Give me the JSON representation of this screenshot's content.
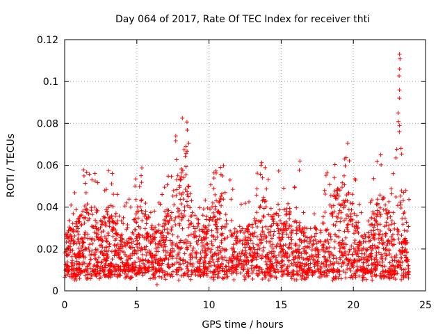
{
  "chart_data": {
    "type": "scatter",
    "title": "Day 064 of 2017, Rate Of TEC Index for receiver thti",
    "xlabel": "GPS time / hours",
    "ylabel": "ROTI / TECUs",
    "xlim": [
      0,
      25
    ],
    "ylim": [
      0,
      0.12
    ],
    "xticks": [
      0,
      5,
      10,
      15,
      20,
      25
    ],
    "xtick_labels": [
      "0",
      "5",
      "10",
      "15",
      "20",
      "25"
    ],
    "yticks": [
      0,
      0.02,
      0.04,
      0.06,
      0.08,
      0.1,
      0.12
    ],
    "ytick_labels": [
      "0",
      "0.02",
      "0.04",
      "0.06",
      "0.08",
      "0.1",
      "0.12"
    ],
    "grid": true,
    "marker": "plus",
    "marker_color": "#ff0000",
    "series": [
      {
        "name": "ROTI",
        "x_range": [
          0,
          23.85
        ],
        "baseline_min": 0.005,
        "baseline_max": 0.03,
        "peaks": [
          {
            "x": 7.7,
            "y": 0.074
          },
          {
            "x": 8.4,
            "y": 0.069
          },
          {
            "x": 10.8,
            "y": 0.059
          },
          {
            "x": 13.6,
            "y": 0.06
          },
          {
            "x": 16.3,
            "y": 0.062
          },
          {
            "x": 19.4,
            "y": 0.063
          },
          {
            "x": 21.9,
            "y": 0.065
          },
          {
            "x": 23.2,
            "y": 0.113
          },
          {
            "x": 23.2,
            "y": 0.106
          },
          {
            "x": 23.2,
            "y": 0.096
          },
          {
            "x": 23.1,
            "y": 0.085
          },
          {
            "x": 23.2,
            "y": 0.079
          },
          {
            "x": 23.3,
            "y": 0.068
          },
          {
            "x": 3.3,
            "y": 0.056
          },
          {
            "x": 2.1,
            "y": 0.056
          },
          {
            "x": 5.3,
            "y": 0.055
          },
          {
            "x": 6.4,
            "y": 0.003
          }
        ]
      }
    ]
  },
  "colors": {
    "background": "#ffffff",
    "grid": "#a0a0a0",
    "axes": "#000000",
    "points": "#ff0000"
  }
}
